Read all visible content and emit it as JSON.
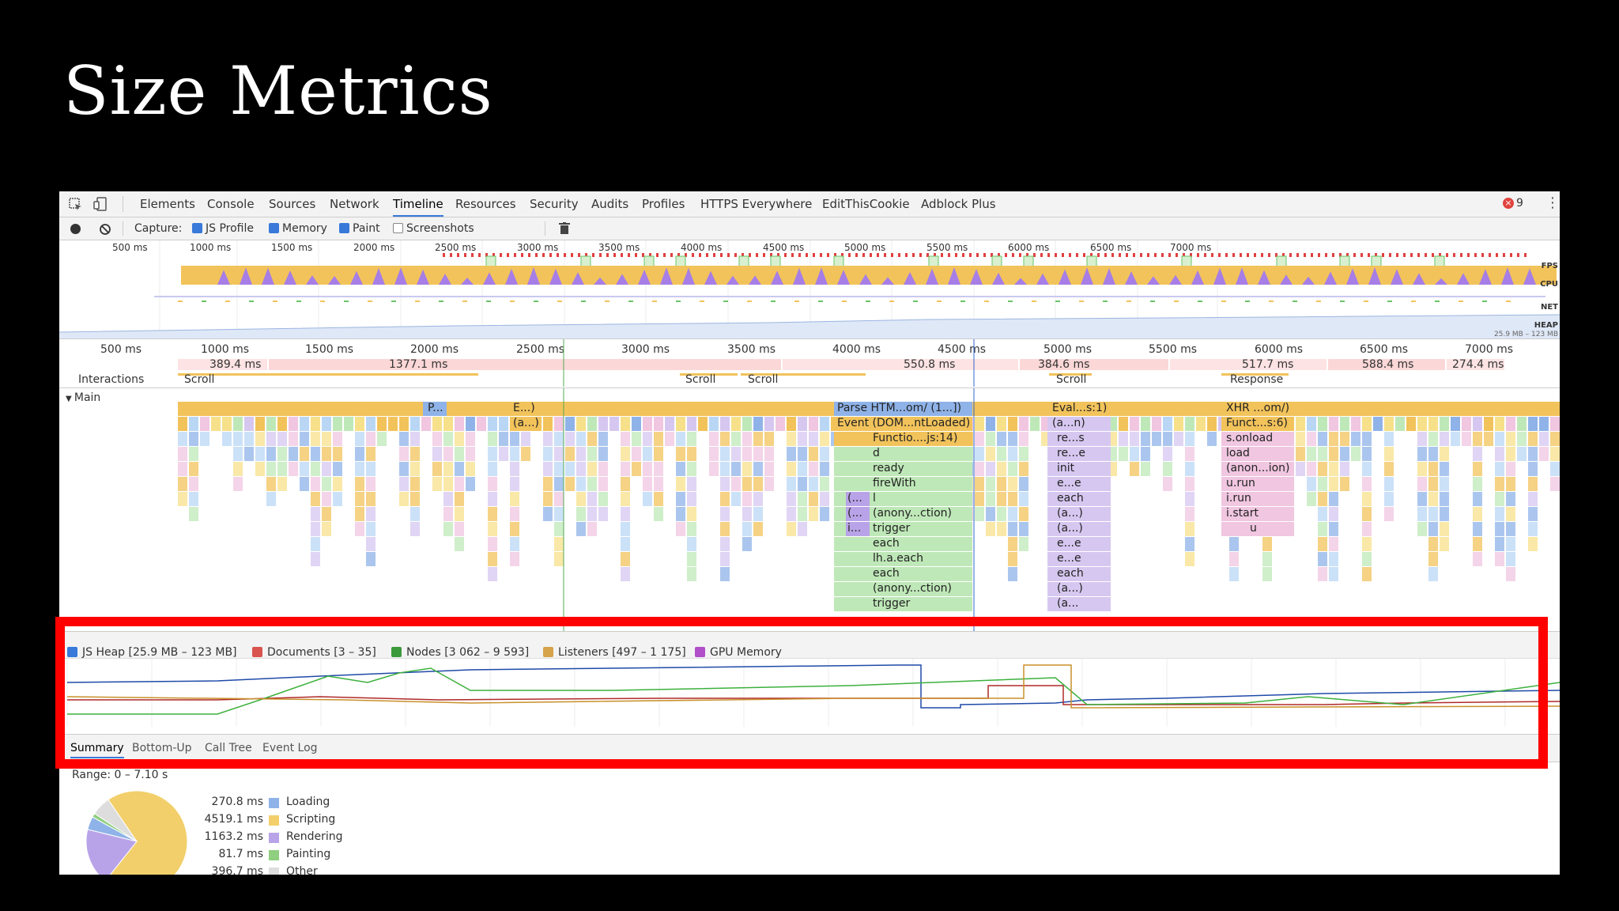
{
  "slide": {
    "title": "Size Metrics"
  },
  "tabs": [
    "Elements",
    "Console",
    "Sources",
    "Network",
    "Timeline",
    "Resources",
    "Security",
    "Audits",
    "Profiles",
    "HTTPS Everywhere",
    "EditThisCookie",
    "Adblock Plus"
  ],
  "active_tab": "Timeline",
  "error_count": "9",
  "capture": {
    "label": "Capture:",
    "options": [
      {
        "label": "JS Profile",
        "checked": true
      },
      {
        "label": "Memory",
        "checked": true
      },
      {
        "label": "Paint",
        "checked": true
      },
      {
        "label": "Screenshots",
        "checked": false
      }
    ]
  },
  "overview": {
    "ticks": [
      "500 ms",
      "1000 ms",
      "1500 ms",
      "2000 ms",
      "2500 ms",
      "3000 ms",
      "3500 ms",
      "4000 ms",
      "4500 ms",
      "5000 ms",
      "5500 ms",
      "6000 ms",
      "6500 ms",
      "7000 ms"
    ],
    "track_labels": [
      "FPS",
      "CPU",
      "NET",
      "HEAP"
    ],
    "heap_range": "25.9 MB – 123 MB"
  },
  "ruler": {
    "ticks": [
      "500 ms",
      "1000 ms",
      "1500 ms",
      "2000 ms",
      "2500 ms",
      "3000 ms",
      "3500 ms",
      "4000 ms",
      "4500 ms",
      "5000 ms",
      "5500 ms",
      "6000 ms",
      "6500 ms",
      "7000 ms"
    ],
    "frames": [
      "389.4 ms",
      "1377.1 ms",
      "550.8 ms",
      "384.6 ms",
      "517.7 ms",
      "588.4 ms",
      "274.4 ms"
    ],
    "interactions_label": "Interactions",
    "interactions": [
      "Scroll",
      "Scroll",
      "Scroll",
      "Scroll",
      "Response"
    ]
  },
  "main": {
    "label": "Main",
    "col_a": [
      "P...",
      "E...)",
      "(a...)"
    ],
    "col_b": [
      "Parse HTM...om/ (1...])",
      "Event (DOM...ntLoaded)",
      "Functio....js:14)",
      "d",
      "ready",
      "fireWith",
      "l",
      "(anony...ction)",
      "trigger",
      "each",
      "lh.a.each",
      "each",
      "(anony...ction)",
      "trigger"
    ],
    "col_b_side": [
      "(...",
      "(...",
      "i..."
    ],
    "col_c": [
      "Eval...s:1)",
      "(a...n)",
      "re...s",
      "re...e",
      "init",
      "e...e",
      "each",
      "(a...)",
      "(a...)",
      "e...e",
      "e...e",
      "each",
      "(a...)",
      "(a..."
    ],
    "col_d": [
      "XHR ...om/)",
      "Funct...s:6)",
      "s.onload",
      "load",
      "(anon...ion)",
      "u.run",
      "i.run",
      "i.start",
      "u"
    ]
  },
  "counters": [
    {
      "label": "JS Heap [25.9 MB – 123 MB]",
      "color": "#3879d9"
    },
    {
      "label": "Documents [3 – 35]",
      "color": "#d9534f"
    },
    {
      "label": "Nodes [3 062 – 9 593]",
      "color": "#3c9a3c"
    },
    {
      "label": "Listeners [497 – 1 175]",
      "color": "#d6a24a"
    },
    {
      "label": "GPU Memory",
      "color": "#b04fc9"
    }
  ],
  "bottom_tabs": [
    "Summary",
    "Bottom-Up",
    "Call Tree",
    "Event Log"
  ],
  "summary": {
    "range": "Range: 0 – 7.10 s",
    "items": [
      {
        "value": "270.8 ms",
        "label": "Loading",
        "color": "#8fb3e8"
      },
      {
        "value": "4519.1 ms",
        "label": "Scripting",
        "color": "#f2cf6b"
      },
      {
        "value": "1163.2 ms",
        "label": "Rendering",
        "color": "#b9a3e8"
      },
      {
        "value": "81.7 ms",
        "label": "Painting",
        "color": "#8fcf7f"
      },
      {
        "value": "396.7 ms",
        "label": "Other",
        "color": "#dddddd"
      }
    ]
  }
}
